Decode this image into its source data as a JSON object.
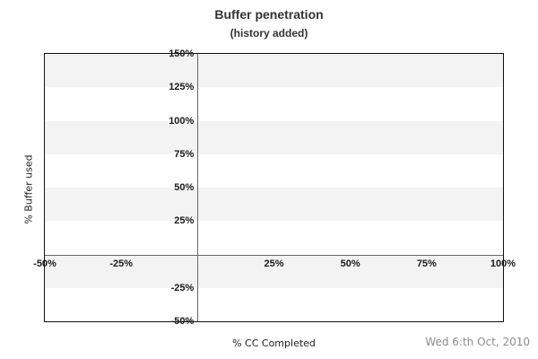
{
  "chart_data": {
    "type": "scatter",
    "title": "Buffer penetration",
    "subtitle": "(history added)",
    "xlabel": "% CC Completed",
    "ylabel": "% Buffer used",
    "xlim": [
      -50,
      100
    ],
    "ylim": [
      -50,
      150
    ],
    "x_ticks": [
      {
        "value": -50,
        "label": "-50%"
      },
      {
        "value": -25,
        "label": "-25%"
      },
      {
        "value": 25,
        "label": "25%"
      },
      {
        "value": 50,
        "label": "50%"
      },
      {
        "value": 75,
        "label": "75%"
      },
      {
        "value": 100,
        "label": "100%"
      }
    ],
    "y_ticks": [
      {
        "value": 150,
        "label": "150%"
      },
      {
        "value": 125,
        "label": "125%"
      },
      {
        "value": 100,
        "label": "100%"
      },
      {
        "value": 75,
        "label": "75%"
      },
      {
        "value": 50,
        "label": "50%"
      },
      {
        "value": 25,
        "label": "25%"
      },
      {
        "value": -25,
        "label": "-25%"
      },
      {
        "value": -50,
        "label": "-50%"
      }
    ],
    "series": [],
    "grid": "alternating-horizontal-bands",
    "band_step": 25,
    "zero_lines": true,
    "legend": "none"
  },
  "footer": {
    "date": "Wed 6:th Oct, 2010"
  },
  "colors": {
    "band": "#f3f3f3",
    "plot_border": "#111111",
    "zero_line": "#666666",
    "tick_text": "#1a1a1a",
    "title_text": "#333333",
    "axis_title_text": "#222222",
    "date_text": "#8c8c8c"
  }
}
